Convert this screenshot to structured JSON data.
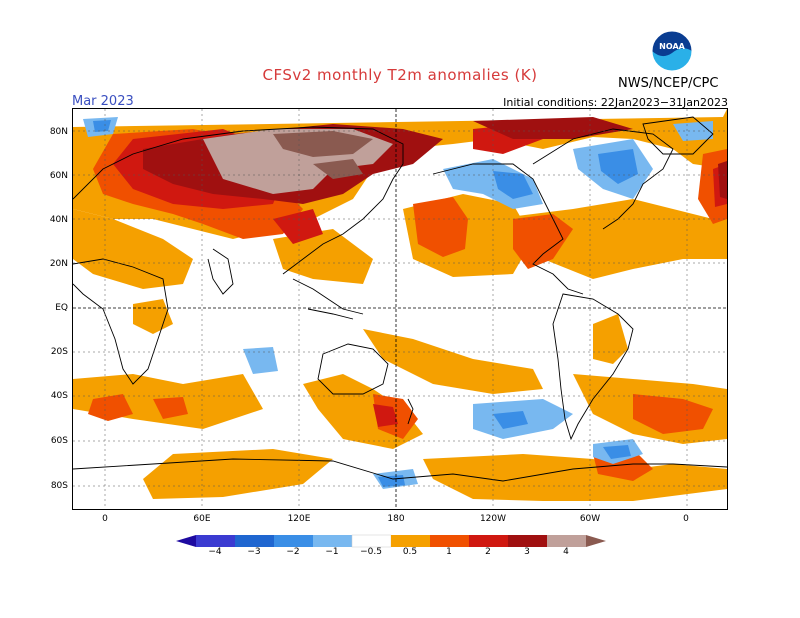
{
  "title": "CFSv2 monthly T2m anomalies (K)",
  "period": "Mar 2023",
  "initial_conditions": "Initial conditions: 22Jan2023−31Jan2023",
  "organization": "NWS/NCEP/CPC",
  "logo_text": "NOAA",
  "latitude_labels": [
    "80N",
    "60N",
    "40N",
    "20N",
    "EQ",
    "20S",
    "40S",
    "60S",
    "80S"
  ],
  "longitude_labels": [
    "0",
    "60E",
    "120E",
    "180",
    "120W",
    "60W",
    "0"
  ],
  "colorbar": {
    "labels": [
      "−4",
      "−3",
      "−2",
      "−1",
      "−0.5",
      "0.5",
      "1",
      "2",
      "3",
      "4"
    ],
    "colors": [
      "#1e0aa0",
      "#3b3bd1",
      "#1f66d0",
      "#3a8ee6",
      "#78b8f0",
      "#ffffff",
      "#f5a000",
      "#f05000",
      "#d01810",
      "#a01010",
      "#c0a09a",
      "#8a5a50"
    ]
  },
  "map_palette": {
    "land": "#ffffff",
    "warm1": "#f5a000",
    "warm2": "#f05000",
    "warm3": "#d01810",
    "warm4": "#a01010",
    "warm5": "#c0a09a",
    "warm6": "#8a5a50",
    "cool1": "#78b8f0",
    "cool2": "#3a8ee6",
    "cool3": "#1f66d0"
  }
}
